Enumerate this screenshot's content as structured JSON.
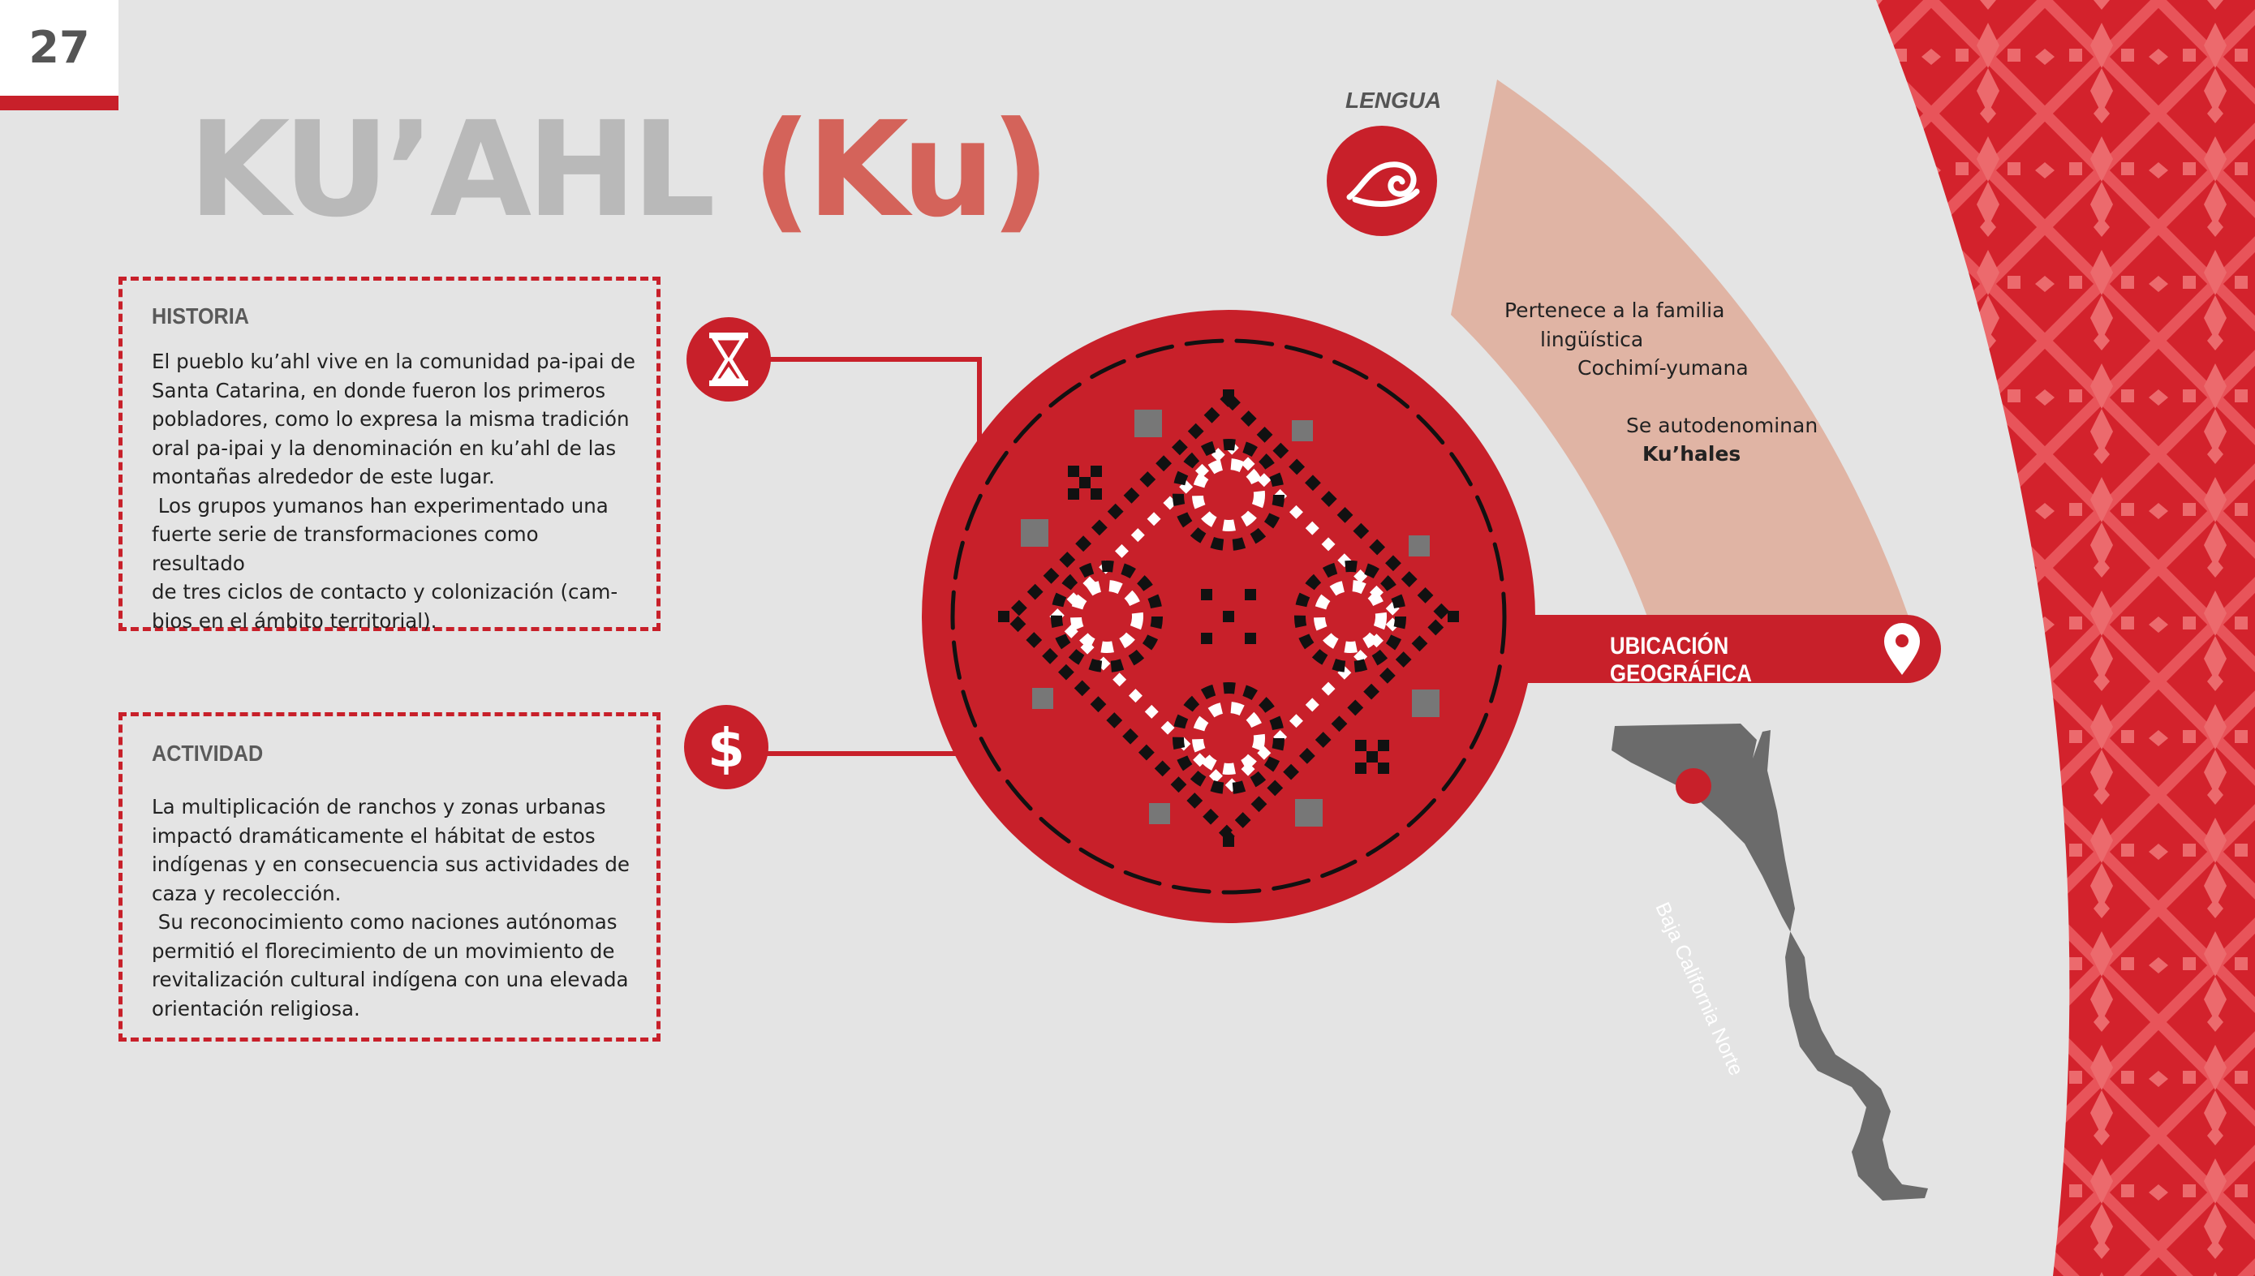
{
  "page": {
    "number": "27"
  },
  "title": {
    "main": "KU’AHL ",
    "abbr": "(Ku)"
  },
  "historia": {
    "heading": "HISTORIA",
    "lines": [
      "El pueblo ku’ahl vive en la comunidad pa-ipai de",
      "Santa Catarina, en donde fueron los primeros",
      "pobladores, como lo expresa la misma tradición",
      "oral pa-ipai y la denominación en ku’ahl de las",
      "montañas alrededor de este lugar.",
      " Los grupos yumanos han experimentado una",
      "fuerte serie de transformaciones como resultado",
      "de tres ciclos de contacto y colonización (cam-",
      "bios en el ámbito territorial)."
    ],
    "icon": "hourglass-icon"
  },
  "actividad": {
    "heading": "ACTIVIDAD",
    "lines": [
      "La multiplicación de ranchos y zonas urbanas",
      "impactó dramáticamente el hábitat de estos",
      "indígenas y en consecuencia sus actividades de",
      "caza y recolección.",
      " Su reconocimiento como naciones autónomas",
      "permitió el florecimiento de un movimiento de",
      "revitalización cultural indígena con una elevada",
      "orientación religiosa."
    ],
    "icon": "dollar-icon"
  },
  "lengua": {
    "label": "LENGUA",
    "icon": "speech-swirl-icon",
    "family_line1": "Pertenece a la familia",
    "family_line2": "lingüística",
    "family_line3": "Cochimí-yumana",
    "self_name_line1": "Se autodenominan",
    "self_name_line2": "Ku’hales"
  },
  "ubicacion": {
    "label": "UBICACIÓN GEOGRÁFICA",
    "icon": "location-pin-icon",
    "map_label": "Baja California Norte"
  },
  "colors": {
    "red": "#c8202a",
    "salmon": "#d4635a",
    "peach": "#e0b4a4",
    "gray": "#b9b9b9",
    "map_gray": "#6b6b6b"
  }
}
